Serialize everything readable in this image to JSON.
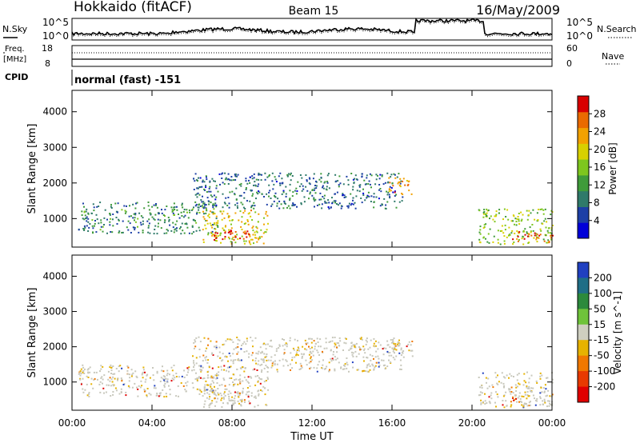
{
  "header": {
    "station": "Hokkaido (fitACF)",
    "beam": "Beam 15",
    "date": "16/May/2009"
  },
  "panels": {
    "nsky": {
      "left_label": "N.Sky",
      "right_label": "N.Search",
      "ytick_top": "10^5",
      "ytick_bottom": "10^0",
      "rtick_top": "10^5",
      "rtick_bottom": "10^0"
    },
    "freq": {
      "label_line1": "Freq.",
      "label_line2": "[MHz]",
      "right_label": "Nave",
      "ytick_top": "18",
      "ytick_bottom": "8",
      "rtick_top": "60",
      "rtick_bottom": "0"
    },
    "cpid": {
      "label": "CPID",
      "mode": "normal (fast) -151"
    }
  },
  "chart_data": [
    {
      "type": "heatmap",
      "name": "power",
      "ylabel": "Slant Range [km]",
      "yticks": [
        "1000",
        "2000",
        "3000",
        "4000"
      ],
      "ylim": [
        200,
        4600
      ],
      "colorbar": {
        "label": "Power [dB]",
        "ticks": [
          "4",
          "8",
          "12",
          "16",
          "20",
          "24",
          "28"
        ],
        "range": [
          0,
          32
        ],
        "colors": [
          "#0000d8",
          "#1c3fa6",
          "#2f7a6a",
          "#3f9b3a",
          "#7ec61e",
          "#d8d000",
          "#f2a100",
          "#ea6a00",
          "#d80000"
        ]
      },
      "echo_regions": [
        {
          "t_start": 0.3,
          "t_end": 7.3,
          "r_low": 600,
          "r_high": 1500,
          "power_db": 10
        },
        {
          "t_start": 6.5,
          "t_end": 9.8,
          "r_low": 300,
          "r_high": 1250,
          "power_db": 20
        },
        {
          "t_start": 6.8,
          "t_end": 9.0,
          "r_low": 400,
          "r_high": 700,
          "power_db": 28
        },
        {
          "t_start": 6.0,
          "t_end": 16.5,
          "r_low": 1300,
          "r_high": 2300,
          "power_db": 8
        },
        {
          "t_start": 15.8,
          "t_end": 17.0,
          "r_low": 1700,
          "r_high": 2200,
          "power_db": 24
        },
        {
          "t_start": 20.3,
          "t_end": 24.0,
          "r_low": 300,
          "r_high": 1300,
          "power_db": 16
        },
        {
          "t_start": 22.0,
          "t_end": 24.0,
          "r_low": 350,
          "r_high": 650,
          "power_db": 28
        }
      ]
    },
    {
      "type": "heatmap",
      "name": "velocity",
      "ylabel": "Slant Range [km]",
      "yticks": [
        "1000",
        "2000",
        "3000",
        "4000"
      ],
      "ylim": [
        200,
        4600
      ],
      "colorbar": {
        "label": "Velocity [m s^-1]",
        "ticks": [
          "200",
          "100",
          "50",
          "15",
          "-15",
          "-50",
          "-100",
          "-200"
        ],
        "range": [
          -250,
          250
        ],
        "colors": [
          "#2040c0",
          "#1f6e86",
          "#2c8a3c",
          "#6fc33a",
          "#cfcfc0",
          "#e6b200",
          "#f07800",
          "#e83a00",
          "#e00000"
        ]
      },
      "xlabel": "Time UT",
      "xticks": [
        "00:00",
        "04:00",
        "08:00",
        "12:00",
        "16:00",
        "20:00",
        "00:00"
      ],
      "xlim": [
        0,
        24
      ]
    }
  ]
}
